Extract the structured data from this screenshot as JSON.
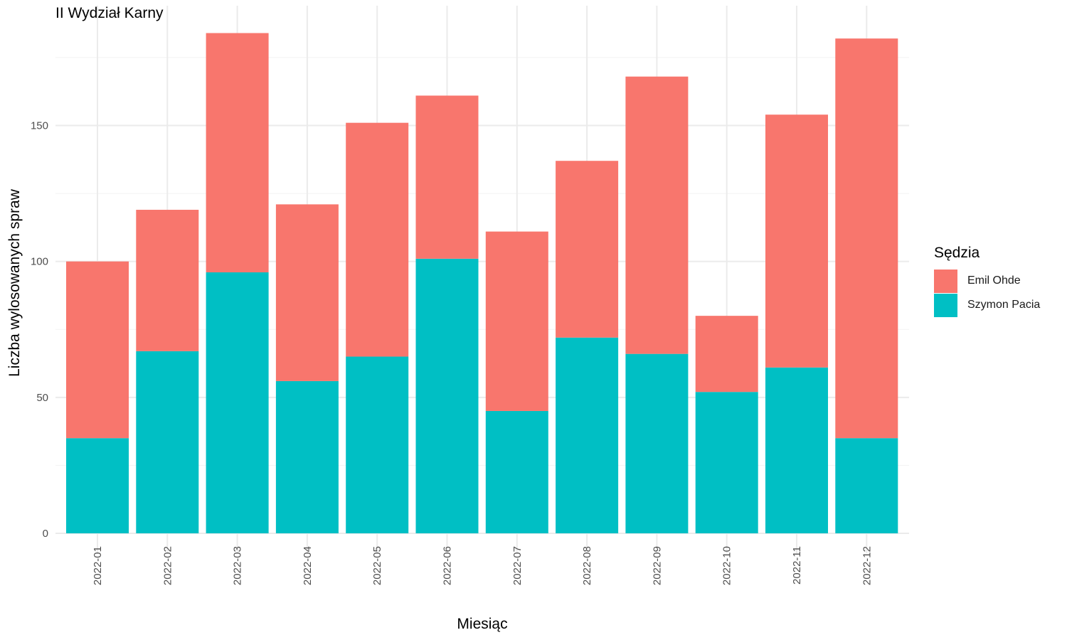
{
  "chart_data": {
    "type": "bar",
    "stacked": true,
    "title": "II Wydział Karny",
    "xlabel": "Miesiąc",
    "ylabel": "Liczba wylosowanych spraw",
    "categories": [
      "2022-01",
      "2022-02",
      "2022-03",
      "2022-04",
      "2022-05",
      "2022-06",
      "2022-07",
      "2022-08",
      "2022-09",
      "2022-10",
      "2022-11",
      "2022-12"
    ],
    "series": [
      {
        "name": "Szymon Pacia",
        "color": "#00BFC4",
        "values": [
          35,
          67,
          96,
          56,
          65,
          101,
          45,
          72,
          66,
          52,
          61,
          35
        ]
      },
      {
        "name": "Emil Ohde",
        "color": "#F8766D",
        "values": [
          65,
          52,
          88,
          65,
          86,
          60,
          66,
          65,
          102,
          28,
          93,
          147
        ]
      }
    ],
    "ylim": [
      0,
      190
    ],
    "yticks": [
      0,
      50,
      100,
      150
    ],
    "grid": true,
    "legend": {
      "title": "Sędzia",
      "position": "right",
      "order": [
        "Emil Ohde",
        "Szymon Pacia"
      ]
    }
  }
}
